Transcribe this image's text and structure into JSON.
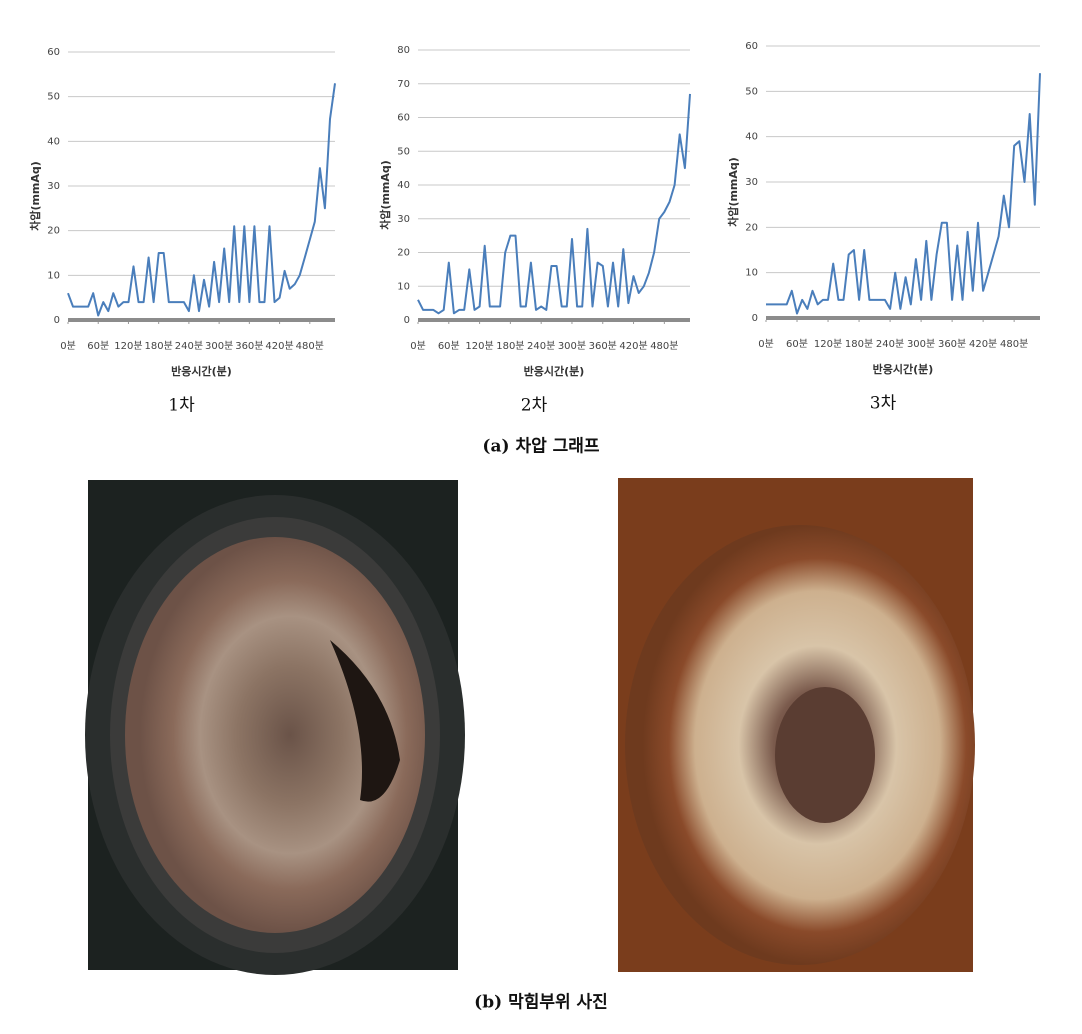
{
  "chart_data": [
    {
      "type": "line",
      "label": "1차",
      "x_label": "반응시간(분)",
      "y_label": "차압(mmAq)",
      "x": [
        0,
        10,
        20,
        30,
        40,
        50,
        60,
        70,
        80,
        90,
        100,
        110,
        120,
        130,
        140,
        150,
        160,
        170,
        180,
        190,
        200,
        210,
        220,
        230,
        240,
        250,
        260,
        270,
        280,
        290,
        300,
        310,
        320,
        330,
        340,
        350,
        360,
        370,
        380,
        390,
        400,
        410,
        420,
        430,
        440,
        450,
        460,
        470,
        480,
        490,
        500,
        510,
        520,
        530
      ],
      "series": [
        {
          "color": "#4a7ebb",
          "values": [
            6,
            3,
            3,
            3,
            3,
            6,
            1,
            4,
            2,
            6,
            3,
            4,
            4,
            12,
            4,
            4,
            14,
            4,
            15,
            15,
            4,
            4,
            4,
            4,
            2,
            10,
            2,
            9,
            3,
            13,
            4,
            16,
            4,
            21,
            4,
            21,
            4,
            21,
            4,
            4,
            21,
            4,
            5,
            11,
            7,
            8,
            10,
            14,
            18,
            22,
            34,
            25,
            45,
            53
          ]
        }
      ],
      "xlim": [
        0,
        530
      ],
      "ylim": [
        0,
        60
      ],
      "xticks": [
        {
          "value": 0,
          "label": "0분"
        },
        {
          "value": 60,
          "label": "60분"
        },
        {
          "value": 120,
          "label": "120분"
        },
        {
          "value": 180,
          "label": "180분"
        },
        {
          "value": 240,
          "label": "240분"
        },
        {
          "value": 300,
          "label": "300분"
        },
        {
          "value": 360,
          "label": "360분"
        },
        {
          "value": 420,
          "label": "420분"
        },
        {
          "value": 480,
          "label": "480분"
        }
      ],
      "yticks": [
        0,
        10,
        20,
        30,
        40,
        50,
        60
      ],
      "grid": true
    },
    {
      "type": "line",
      "label": "2차",
      "x_label": "반응시간(분)",
      "y_label": "차압(mmAq)",
      "x": [
        0,
        10,
        20,
        30,
        40,
        50,
        60,
        70,
        80,
        90,
        100,
        110,
        120,
        130,
        140,
        150,
        160,
        170,
        180,
        190,
        200,
        210,
        220,
        230,
        240,
        250,
        260,
        270,
        280,
        290,
        300,
        310,
        320,
        330,
        340,
        350,
        360,
        370,
        380,
        390,
        400,
        410,
        420,
        430,
        440,
        450,
        460,
        470,
        480,
        490,
        500,
        510,
        520,
        530
      ],
      "series": [
        {
          "color": "#4a7ebb",
          "values": [
            6,
            3,
            3,
            3,
            2,
            3,
            17,
            2,
            3,
            3,
            15,
            3,
            4,
            22,
            4,
            4,
            4,
            20,
            25,
            25,
            4,
            4,
            17,
            3,
            4,
            3,
            16,
            16,
            4,
            4,
            24,
            4,
            4,
            27,
            4,
            17,
            16,
            4,
            17,
            4,
            21,
            5,
            13,
            8,
            10,
            14,
            20,
            30,
            32,
            35,
            40,
            55,
            45,
            67
          ]
        }
      ],
      "xlim": [
        0,
        530
      ],
      "ylim": [
        0,
        80
      ],
      "xticks": [
        {
          "value": 0,
          "label": "0분"
        },
        {
          "value": 60,
          "label": "60분"
        },
        {
          "value": 120,
          "label": "120분"
        },
        {
          "value": 180,
          "label": "180분"
        },
        {
          "value": 240,
          "label": "240분"
        },
        {
          "value": 300,
          "label": "300분"
        },
        {
          "value": 360,
          "label": "360분"
        },
        {
          "value": 420,
          "label": "420분"
        },
        {
          "value": 480,
          "label": "480분"
        }
      ],
      "yticks": [
        0,
        10,
        20,
        30,
        40,
        50,
        60,
        70,
        80
      ],
      "grid": true
    },
    {
      "type": "line",
      "label": "3차",
      "x_label": "반응시간(분)",
      "y_label": "차압(mmAq)",
      "x": [
        0,
        10,
        20,
        30,
        40,
        50,
        60,
        70,
        80,
        90,
        100,
        110,
        120,
        130,
        140,
        150,
        160,
        170,
        180,
        190,
        200,
        210,
        220,
        230,
        240,
        250,
        260,
        270,
        280,
        290,
        300,
        310,
        320,
        330,
        340,
        350,
        360,
        370,
        380,
        390,
        400,
        410,
        420,
        430,
        440,
        450,
        460,
        470,
        480,
        490,
        500,
        510,
        520,
        530
      ],
      "series": [
        {
          "color": "#4a7ebb",
          "values": [
            3,
            3,
            3,
            3,
            3,
            6,
            1,
            4,
            2,
            6,
            3,
            4,
            4,
            12,
            4,
            4,
            14,
            15,
            4,
            15,
            4,
            4,
            4,
            4,
            2,
            10,
            2,
            9,
            3,
            13,
            4,
            17,
            4,
            14,
            21,
            21,
            4,
            16,
            4,
            19,
            6,
            21,
            6,
            10,
            14,
            18,
            27,
            20,
            38,
            39,
            30,
            45,
            25,
            54
          ]
        }
      ],
      "xlim": [
        0,
        530
      ],
      "ylim": [
        0,
        60
      ],
      "xticks": [
        {
          "value": 0,
          "label": "0분"
        },
        {
          "value": 60,
          "label": "60분"
        },
        {
          "value": 120,
          "label": "120분"
        },
        {
          "value": 180,
          "label": "180분"
        },
        {
          "value": 240,
          "label": "240분"
        },
        {
          "value": 300,
          "label": "300분"
        },
        {
          "value": 360,
          "label": "360분"
        },
        {
          "value": 420,
          "label": "420분"
        },
        {
          "value": 480,
          "label": "480분"
        }
      ],
      "yticks": [
        0,
        10,
        20,
        30,
        40,
        50,
        60
      ],
      "grid": true
    }
  ],
  "captions": {
    "graphs": "(a) 차압 그래프",
    "photos": "(b) 막힘부위 사진"
  }
}
